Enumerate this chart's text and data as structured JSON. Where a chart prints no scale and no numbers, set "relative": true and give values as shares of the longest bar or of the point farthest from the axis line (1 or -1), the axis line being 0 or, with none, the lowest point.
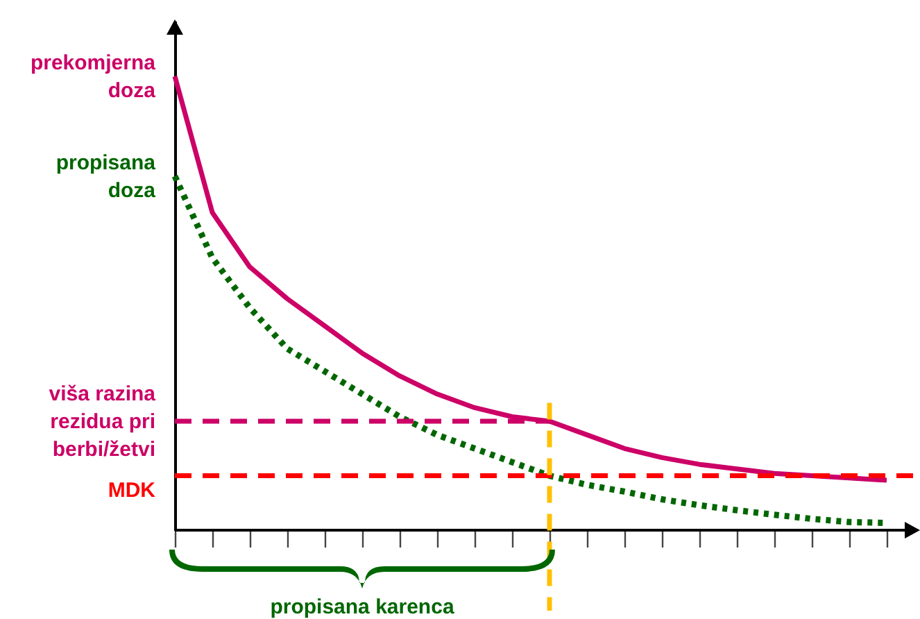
{
  "chart_data": {
    "type": "line",
    "relative": true,
    "categories": [
      null,
      null,
      null,
      null,
      null,
      null,
      null,
      null,
      null,
      null,
      null,
      null,
      null,
      null,
      null,
      null,
      null,
      null,
      null,
      null
    ],
    "series": [
      {
        "name": "prekomjerna doza",
        "color": "#cc0066",
        "line_style": "solid",
        "values": [
          1.0,
          0.7,
          0.58,
          0.51,
          0.45,
          0.39,
          0.34,
          0.3,
          0.27,
          0.25,
          0.24,
          0.21,
          0.18,
          0.16,
          0.145,
          0.135,
          0.125,
          0.12,
          0.115,
          0.11
        ]
      },
      {
        "name": "propisana doza",
        "color": "#006600",
        "line_style": "dotted",
        "values": [
          0.78,
          0.6,
          0.49,
          0.4,
          0.35,
          0.3,
          0.25,
          0.21,
          0.18,
          0.15,
          0.12,
          0.1,
          0.085,
          0.068,
          0.055,
          0.044,
          0.034,
          0.025,
          0.018,
          0.016
        ]
      },
      {
        "name": "viša razina rezidua pri berbi/žetvi",
        "color": "#cc0066",
        "line_style": "dashed",
        "values": [
          0.24,
          0.24,
          0.24,
          0.24,
          0.24,
          0.24,
          0.24,
          0.24,
          0.24,
          0.24,
          0.24,
          null,
          null,
          null,
          null,
          null,
          null,
          null,
          null,
          null
        ]
      }
    ],
    "ref_lines": [
      {
        "axis": "y",
        "value": 0.12,
        "label": "MDK",
        "color": "#ff0000",
        "line_style": "dashed"
      }
    ],
    "annotations": [
      "propisana karenca"
    ]
  }
}
